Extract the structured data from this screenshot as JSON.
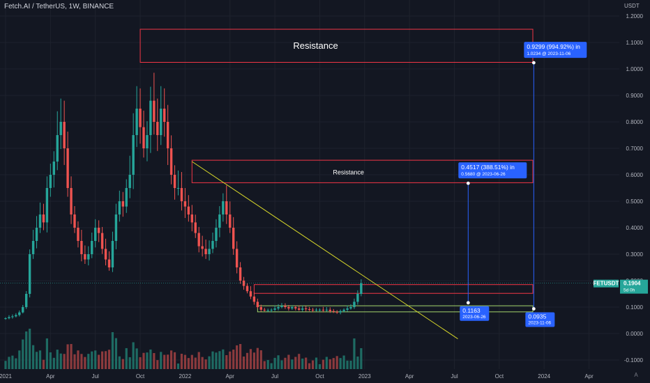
{
  "header": {
    "title": "Fetch.AI / TetherUS, 1W, BINANCE",
    "price_axis_unit": "USDT",
    "corner_icon": "auto-scale-icon",
    "corner_label": "A"
  },
  "colors": {
    "background": "#131722",
    "bull": "#26a69a",
    "bear": "#ef5350",
    "bull_volume": "#1e6b63",
    "bear_volume": "#8b3a3d",
    "resistance_box": "#f23645",
    "support_box": "#a5d66b",
    "trendline": "#d8d82a",
    "callout": "#2962ff",
    "price_tag": "#26a69a"
  },
  "chart_data": {
    "type": "candlestick",
    "symbol": "FETUSDT",
    "y_axis": {
      "ylim": [
        -0.12,
        1.26
      ],
      "ticks": [
        "1.2000",
        "1.1000",
        "1.0000",
        "0.9000",
        "0.8000",
        "0.7000",
        "0.6000",
        "0.5000",
        "0.4000",
        "0.3000",
        "0.2000",
        "0.1000",
        "0.0000",
        "-0.1000"
      ]
    },
    "x_axis": {
      "ticks": [
        {
          "label": "2021",
          "week": 0
        },
        {
          "label": "Apr",
          "week": 13
        },
        {
          "label": "Jul",
          "week": 26
        },
        {
          "label": "Oct",
          "week": 39
        },
        {
          "label": "2022",
          "week": 52
        },
        {
          "label": "Apr",
          "week": 65
        },
        {
          "label": "Jul",
          "week": 78
        },
        {
          "label": "Oct",
          "week": 91
        },
        {
          "label": "2023",
          "week": 104
        },
        {
          "label": "Apr",
          "week": 117
        },
        {
          "label": "Jul",
          "week": 130
        },
        {
          "label": "Oct",
          "week": 143
        },
        {
          "label": "2024",
          "week": 156
        },
        {
          "label": "Apr",
          "week": 169
        }
      ]
    },
    "close_prices": [
      0.058,
      0.062,
      0.065,
      0.07,
      0.08,
      0.1,
      0.15,
      0.3,
      0.35,
      0.4,
      0.45,
      0.42,
      0.55,
      0.6,
      0.65,
      0.75,
      0.8,
      0.7,
      0.55,
      0.45,
      0.4,
      0.35,
      0.3,
      0.28,
      0.3,
      0.35,
      0.4,
      0.38,
      0.32,
      0.28,
      0.25,
      0.35,
      0.45,
      0.5,
      0.48,
      0.55,
      0.6,
      0.75,
      0.85,
      0.78,
      0.7,
      0.75,
      0.88,
      0.8,
      0.75,
      0.85,
      0.8,
      0.7,
      0.6,
      0.55,
      0.55,
      0.5,
      0.48,
      0.45,
      0.42,
      0.38,
      0.33,
      0.32,
      0.3,
      0.32,
      0.35,
      0.4,
      0.45,
      0.5,
      0.45,
      0.4,
      0.32,
      0.25,
      0.2,
      0.18,
      0.16,
      0.14,
      0.12,
      0.1,
      0.09,
      0.088,
      0.088,
      0.09,
      0.095,
      0.1,
      0.105,
      0.1,
      0.095,
      0.1,
      0.095,
      0.09,
      0.095,
      0.092,
      0.09,
      0.088,
      0.09,
      0.09,
      0.088,
      0.09,
      0.085,
      0.082,
      0.08,
      0.085,
      0.09,
      0.095,
      0.1,
      0.12,
      0.15,
      0.19
    ],
    "current_price": {
      "label": "FETUSDT",
      "value": "0.1904",
      "countdown": "5d 0h"
    },
    "zones": [
      {
        "kind": "resistance",
        "label": "Resistance",
        "top": 1.15,
        "bottom": 1.025,
        "start_week": 39,
        "end_week": 159
      },
      {
        "kind": "resistance",
        "label": "Resistance",
        "top": 0.655,
        "bottom": 0.57,
        "start_week": 54,
        "end_week": 159
      },
      {
        "kind": "resistance",
        "label": "",
        "top": 0.185,
        "bottom": 0.152,
        "start_week": 72,
        "end_week": 159
      },
      {
        "kind": "support",
        "label": "",
        "top": 0.105,
        "bottom": 0.082,
        "start_week": 73,
        "end_week": 159
      }
    ],
    "trendline": {
      "start": {
        "week": 54,
        "price": 0.65
      },
      "end": {
        "week": 131,
        "price": -0.02
      }
    },
    "measurements": [
      {
        "from": {
          "week": 134,
          "price": 0.1163
        },
        "to": {
          "week": 134,
          "price": 0.568
        },
        "callout_main": "0.4517 (388.51%) in",
        "callout_sub": "0.5680 @ 2023-06-26",
        "start_value": "0.1163",
        "start_date": "2023-06-26"
      },
      {
        "from": {
          "week": 153,
          "price": 0.0935
        },
        "to": {
          "week": 153,
          "price": 1.0234
        },
        "callout_main": "0.9299 (994.92%) in",
        "callout_sub": "1.0234 @ 2023-11-06",
        "start_value": "0.0935",
        "start_date": "2023-11-06"
      }
    ]
  }
}
